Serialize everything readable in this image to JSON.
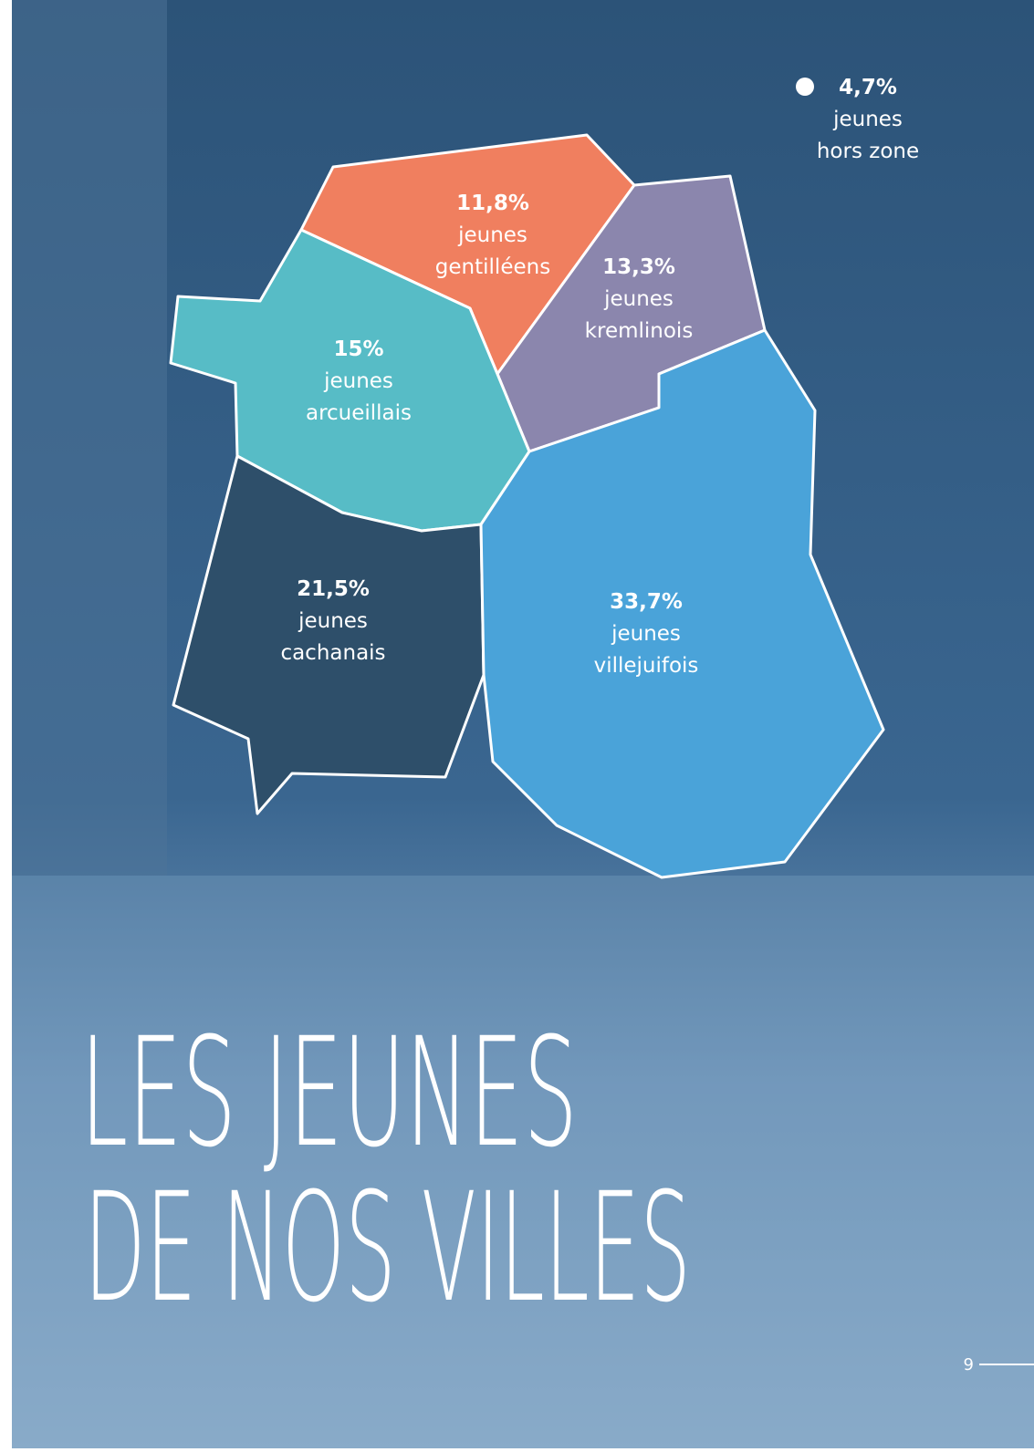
{
  "regions": [
    {
      "share": "11,8%",
      "line1": "jeunes",
      "line2": "gentilléens"
    },
    {
      "share": "13,3%",
      "line1": "jeunes",
      "line2": "kremlinois"
    },
    {
      "share": "15%",
      "line1": "jeunes",
      "line2": "arcueillais"
    },
    {
      "share": "21,5%",
      "line1": "jeunes",
      "line2": "cachanais"
    },
    {
      "share": "33,7%",
      "line1": "jeunes",
      "line2": "villejuifois"
    }
  ],
  "outside": {
    "share": "4,7%",
    "line1": "jeunes",
    "line2": "hors zone"
  },
  "title": [
    "LES JEUNES",
    "DE NOS VILLES"
  ],
  "page_number": "9"
}
